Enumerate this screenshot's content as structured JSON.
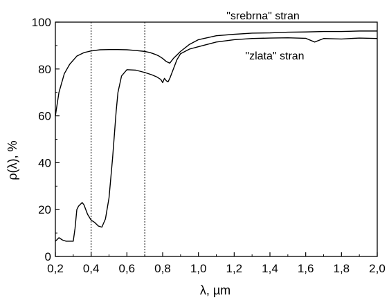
{
  "chart_data": {
    "type": "line",
    "title": "",
    "xlabel": "λ, µm",
    "ylabel": "ρ(λ), %",
    "xlim": [
      0.2,
      2.0
    ],
    "ylim": [
      0,
      100
    ],
    "x_ticks": [
      "0,2",
      "0,4",
      "0,6",
      "0,8",
      "1,0",
      "1,2",
      "1,4",
      "1,6",
      "1,8",
      "2,0"
    ],
    "y_ticks": [
      "0",
      "20",
      "40",
      "60",
      "80",
      "100"
    ],
    "grid": false,
    "legend": "none",
    "vertical_reference_lines": [
      0.4,
      0.7
    ],
    "annotations": [
      "\"srebrna\" stran",
      "\"zlata\" stran"
    ],
    "series": [
      {
        "label": "\"srebrna\" stran",
        "x": [
          0.2,
          0.22,
          0.25,
          0.28,
          0.32,
          0.36,
          0.4,
          0.45,
          0.5,
          0.55,
          0.6,
          0.65,
          0.7,
          0.73,
          0.76,
          0.78,
          0.8,
          0.82,
          0.84,
          0.86,
          0.9,
          0.95,
          1.0,
          1.1,
          1.2,
          1.3,
          1.4,
          1.5,
          1.6,
          1.7,
          1.8,
          1.9,
          2.0
        ],
        "y": [
          60,
          70,
          78,
          82,
          85.5,
          87,
          87.7,
          88.2,
          88.3,
          88.3,
          88.2,
          87.9,
          87.5,
          87,
          86.2,
          85.5,
          84.5,
          83.2,
          82.5,
          84.5,
          87.5,
          90.5,
          92.5,
          94.2,
          94.8,
          95.3,
          95.4,
          95.7,
          95.8,
          96,
          96,
          96.2,
          96.2
        ]
      },
      {
        "label": "\"zlata\" stran",
        "x": [
          0.2,
          0.22,
          0.24,
          0.26,
          0.28,
          0.3,
          0.31,
          0.32,
          0.33,
          0.35,
          0.36,
          0.38,
          0.4,
          0.42,
          0.44,
          0.46,
          0.48,
          0.5,
          0.52,
          0.54,
          0.55,
          0.57,
          0.6,
          0.65,
          0.7,
          0.74,
          0.77,
          0.79,
          0.8,
          0.81,
          0.82,
          0.83,
          0.84,
          0.86,
          0.88,
          0.9,
          0.95,
          1.0,
          1.1,
          1.2,
          1.3,
          1.4,
          1.5,
          1.6,
          1.65,
          1.7,
          1.8,
          1.9,
          2.0
        ],
        "y": [
          6.5,
          8,
          7,
          6.5,
          6.5,
          6.5,
          12,
          20,
          21.5,
          23,
          22,
          18,
          15.5,
          14.5,
          13,
          12.5,
          16,
          25,
          42,
          62,
          70,
          77,
          79.7,
          79.5,
          78.5,
          77.5,
          76.5,
          75.5,
          74.2,
          76,
          75,
          74.5,
          76,
          80,
          84,
          86.5,
          88.5,
          89.5,
          91.5,
          92.5,
          93,
          93.2,
          93.3,
          93.1,
          91.5,
          93,
          92.8,
          93.2,
          93
        ]
      }
    ]
  }
}
